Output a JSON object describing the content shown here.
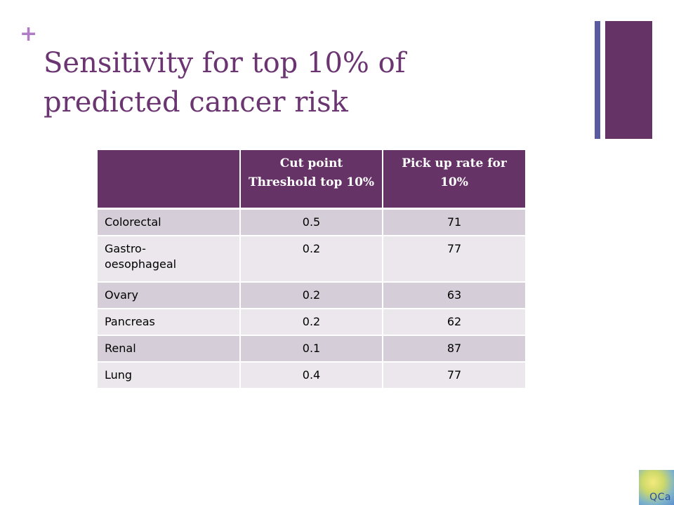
{
  "slide": {
    "plus": "+",
    "title": "Sensitivity for top 10% of predicted cancer risk"
  },
  "table": {
    "headers": [
      "",
      "Cut point Threshold top 10%",
      "Pick up rate for 10%"
    ],
    "rows": [
      {
        "cancer": "Colorectal",
        "threshold": "0.5",
        "pickup": "71"
      },
      {
        "cancer": "Gastro-\noesophageal",
        "threshold": "0.2",
        "pickup": "77"
      },
      {
        "cancer": "Ovary",
        "threshold": "0.2",
        "pickup": "63"
      },
      {
        "cancer": "Pancreas",
        "threshold": "0.2",
        "pickup": "62"
      },
      {
        "cancer": "Renal",
        "threshold": "0.1",
        "pickup": "87"
      },
      {
        "cancer": "Lung",
        "threshold": "0.4",
        "pickup": "77"
      }
    ]
  },
  "logo": {
    "text": "QCa"
  },
  "colors": {
    "accent_purple": "#663366",
    "title_purple": "#6b3571",
    "plus_pink": "#b07cc6",
    "bar_blue": "#5a5aa0",
    "row_dark": "#d5ced8",
    "row_light": "#ebe7ec"
  }
}
